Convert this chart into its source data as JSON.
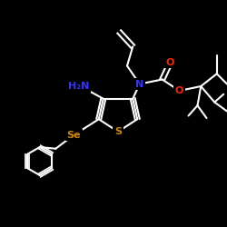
{
  "bg_color": "#000000",
  "bond_color": "#ffffff",
  "atom_colors": {
    "N": "#3333ff",
    "O": "#ff2200",
    "S": "#cc8800",
    "Se": "#cc8800",
    "NH2": "#3333ff"
  },
  "bond_width": 1.5,
  "figsize": [
    2.5,
    2.5
  ],
  "dpi": 100
}
